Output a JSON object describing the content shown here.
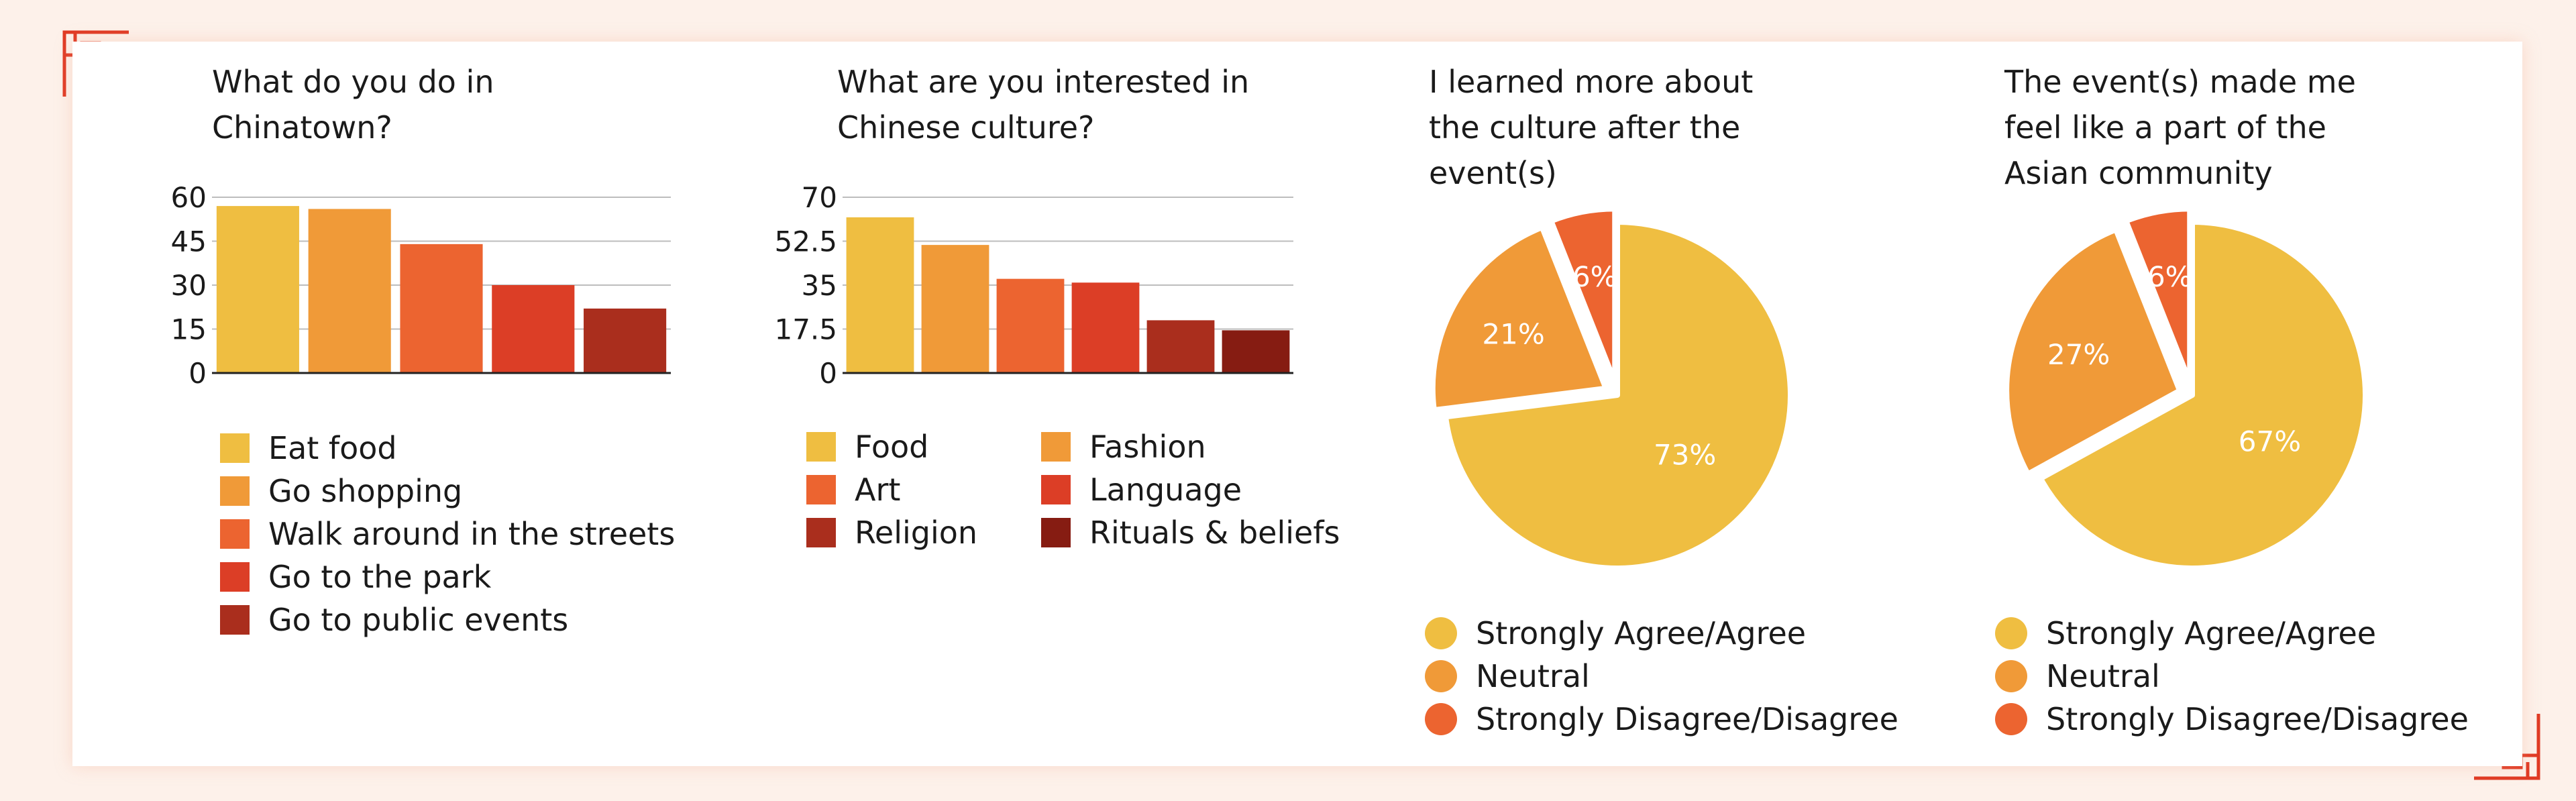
{
  "palette": {
    "yellow": "#efbe41",
    "orange": "#f09a38",
    "deep_orange": "#ec6430",
    "red": "#dc3e26",
    "dark_red": "#aa2e1d",
    "maroon": "#861c12",
    "corner": "#e03a24"
  },
  "chart_data": [
    {
      "type": "bar",
      "title": "What do you do in\nChinatown?",
      "categories": [
        "Eat food",
        "Go shopping",
        "Walk around in the streets",
        "Go to the park",
        "Go to public events"
      ],
      "values": [
        57,
        56,
        44,
        30,
        22
      ],
      "colors": [
        "#efbe41",
        "#f09a38",
        "#ec6430",
        "#dc3e26",
        "#aa2e1d"
      ],
      "ylim": [
        0,
        60
      ],
      "yticks": [
        "0",
        "15",
        "30",
        "45",
        "60"
      ],
      "grid": true,
      "legend": "bottom"
    },
    {
      "type": "bar",
      "title": "What are you interested in\nChinese culture?",
      "categories": [
        "Food",
        "Fashion",
        "Art",
        "Language",
        "Religion",
        "Rituals & beliefs"
      ],
      "values": [
        62,
        51,
        37.5,
        36,
        21,
        17
      ],
      "colors": [
        "#efbe41",
        "#f09a38",
        "#ec6430",
        "#dc3e26",
        "#aa2e1d",
        "#861c12"
      ],
      "ylim": [
        0,
        70
      ],
      "yticks": [
        "0",
        "17.5",
        "35",
        "52.5",
        "70"
      ],
      "grid": true,
      "legend": "bottom"
    },
    {
      "type": "pie",
      "title": "I learned more about\nthe culture after the\nevent(s)",
      "categories": [
        "Strongly Agree/Agree",
        "Neutral",
        "Strongly Disagree/Disagree"
      ],
      "values": [
        73,
        21,
        6
      ],
      "labels": [
        "73%",
        "21%",
        "6%"
      ],
      "colors": [
        "#efbe41",
        "#f09a38",
        "#ec6430"
      ],
      "legend": "bottom"
    },
    {
      "type": "pie",
      "title": "The event(s) made me\nfeel like a part of the\nAsian community",
      "categories": [
        "Strongly Agree/Agree",
        "Neutral",
        "Strongly Disagree/Disagree"
      ],
      "values": [
        67,
        27,
        6
      ],
      "labels": [
        "67%",
        "27%",
        "6%"
      ],
      "colors": [
        "#efbe41",
        "#f09a38",
        "#ec6430"
      ],
      "legend": "bottom"
    }
  ]
}
